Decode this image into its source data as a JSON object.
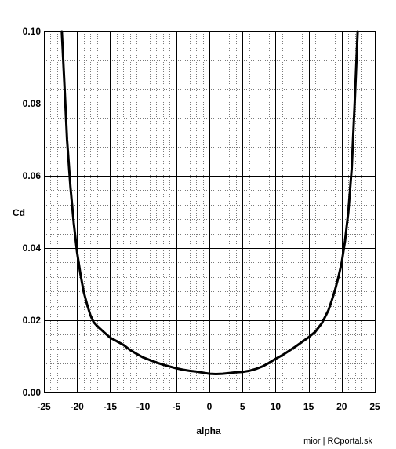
{
  "chart_data": {
    "type": "line",
    "title": "",
    "xlabel": "alpha",
    "ylabel": "Cd",
    "xlim": [
      -25,
      25
    ],
    "ylim": [
      0,
      0.1
    ],
    "x_ticks": [
      -25,
      -20,
      -15,
      -10,
      -5,
      0,
      5,
      10,
      15,
      20,
      25
    ],
    "x_tick_labels": [
      "-25",
      "-20",
      "-15",
      "-10",
      "-5",
      "0",
      "5",
      "10",
      "15",
      "20",
      "25"
    ],
    "y_ticks": [
      0,
      0.02,
      0.04,
      0.06,
      0.08,
      0.1
    ],
    "y_tick_labels": [
      "0.00",
      "0.02",
      "0.04",
      "0.06",
      "0.08",
      "0.10"
    ],
    "grid": true,
    "minor_grid": true,
    "line_color": "#000000",
    "series": [
      {
        "x": [
          -22.3,
          -21.9,
          -21.5,
          -21.0,
          -20.5,
          -20.0,
          -19.5,
          -19.0,
          -18.5,
          -18.0,
          -17.5,
          -17.0,
          -16.0,
          -15.0,
          -14.0,
          -13.0,
          -12.0,
          -11.0,
          -10.0,
          -9.0,
          -8.0,
          -7.0,
          -6.0,
          -5.0,
          -4.0,
          -3.0,
          -2.0,
          -1.0,
          0.0,
          1.0,
          2.0,
          3.0,
          4.0,
          5.0,
          6.0,
          7.0,
          8.0,
          9.0,
          10.0,
          11.0,
          12.0,
          13.0,
          14.0,
          15.0,
          16.0,
          17.0,
          17.5,
          18.0,
          18.5,
          19.0,
          19.5,
          20.0,
          20.5,
          21.0,
          21.5,
          22.0,
          22.4
        ],
        "y": [
          0.1,
          0.085,
          0.07,
          0.057,
          0.047,
          0.039,
          0.033,
          0.028,
          0.0245,
          0.0215,
          0.0195,
          0.0185,
          0.0168,
          0.0152,
          0.0142,
          0.0132,
          0.0118,
          0.0107,
          0.0097,
          0.009,
          0.0083,
          0.0077,
          0.0072,
          0.0067,
          0.0063,
          0.006,
          0.0058,
          0.0055,
          0.0052,
          0.0051,
          0.0052,
          0.0054,
          0.0056,
          0.0057,
          0.006,
          0.0065,
          0.0072,
          0.0082,
          0.0093,
          0.0103,
          0.0115,
          0.0127,
          0.014,
          0.0153,
          0.0168,
          0.0192,
          0.021,
          0.0228,
          0.0255,
          0.0285,
          0.032,
          0.036,
          0.042,
          0.05,
          0.062,
          0.082,
          0.1
        ]
      }
    ]
  },
  "credit": "mior | RCportal.sk"
}
